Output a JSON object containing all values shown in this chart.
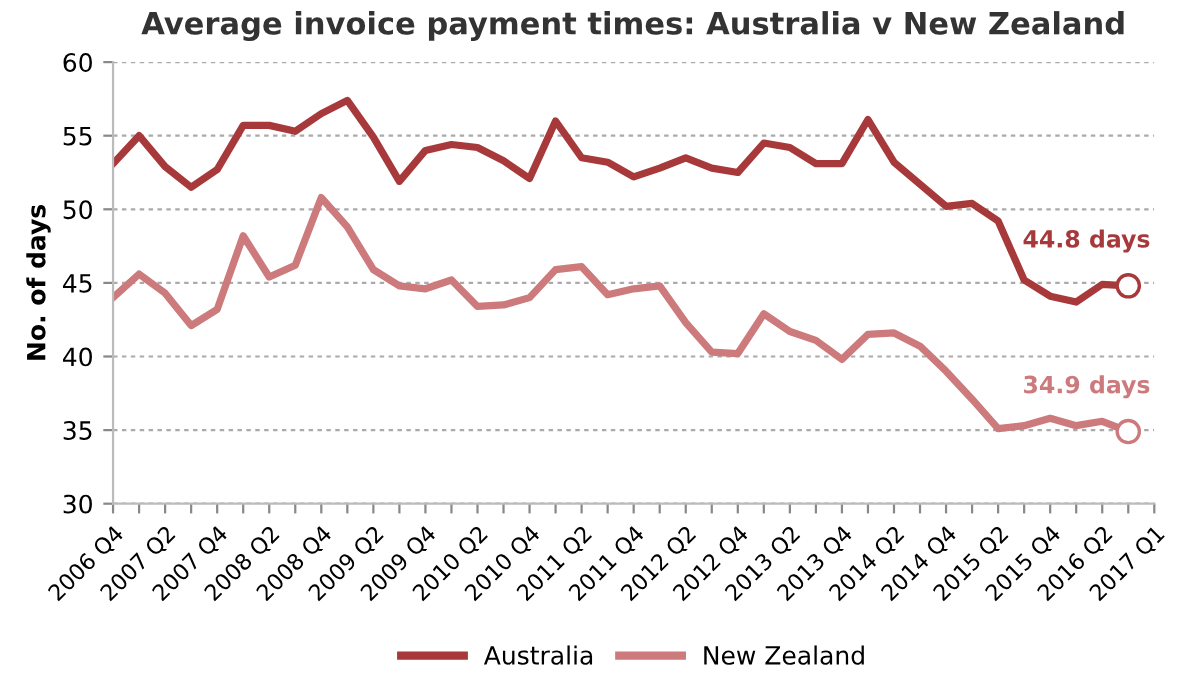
{
  "chart_data": {
    "type": "line",
    "title": "Average invoice payment times: Australia v New Zealand",
    "ylabel": "No. of days",
    "categories": [
      "2006 Q4",
      null,
      "2007 Q2",
      null,
      "2007 Q4",
      null,
      "2008 Q2",
      null,
      "2008 Q4",
      null,
      "2009 Q2",
      null,
      "2009 Q4",
      null,
      "2010 Q2",
      null,
      "2010 Q4",
      null,
      "2011 Q2",
      null,
      "2011 Q4",
      null,
      "2012 Q2",
      null,
      "2012 Q4",
      null,
      "2013 Q2",
      null,
      "2013 Q4",
      null,
      "2014 Q2",
      null,
      "2014 Q4",
      null,
      "2015 Q2",
      null,
      "2015 Q4",
      null,
      "2016 Q2",
      null,
      "2017 Q1"
    ],
    "series": [
      {
        "name": "Australia",
        "color": "#a8393b",
        "values": [
          53.1,
          55.0,
          52.9,
          51.5,
          52.7,
          55.7,
          55.7,
          55.3,
          56.5,
          57.4,
          54.9,
          51.9,
          54.0,
          54.4,
          54.2,
          53.3,
          52.1,
          56.0,
          53.5,
          53.2,
          52.2,
          52.8,
          53.5,
          52.8,
          52.5,
          54.5,
          54.2,
          53.1,
          53.1,
          56.1,
          53.2,
          51.7,
          50.2,
          50.4,
          49.2,
          45.2,
          44.1,
          43.7,
          44.9,
          44.8,
          null
        ]
      },
      {
        "name": "New Zealand",
        "color": "#cc7a7c",
        "values": [
          44.0,
          45.6,
          44.3,
          42.1,
          43.2,
          48.2,
          45.4,
          46.2,
          50.8,
          48.8,
          45.9,
          44.8,
          44.6,
          45.2,
          43.4,
          43.5,
          44.0,
          45.9,
          46.1,
          44.2,
          44.6,
          44.8,
          42.3,
          40.3,
          40.2,
          42.9,
          41.7,
          41.1,
          39.8,
          41.5,
          41.6,
          40.7,
          39.0,
          37.1,
          35.1,
          35.3,
          35.8,
          35.3,
          35.6,
          34.9,
          null
        ]
      }
    ],
    "annotations": [
      {
        "text": "44.8 days",
        "y": 44.8
      },
      {
        "text": "34.9 days",
        "y": 34.9
      }
    ],
    "ylim": [
      30,
      60
    ],
    "yticks": [
      30,
      35,
      40,
      45,
      50,
      55,
      60
    ],
    "grid": "y",
    "legend": "bottom",
    "marker": "none",
    "line_style": "solid"
  }
}
